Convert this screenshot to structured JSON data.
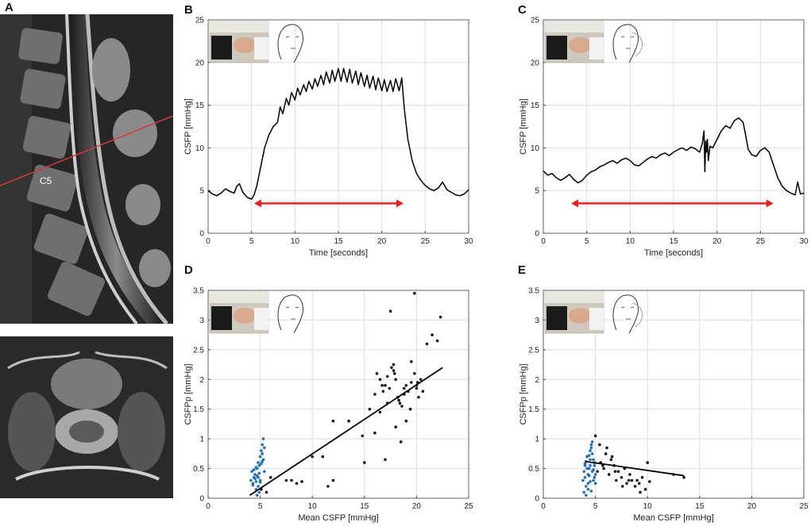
{
  "panels": {
    "A": "A",
    "B": "B",
    "C": "C",
    "D": "D",
    "E": "E",
    "vertebra_label": "C5"
  },
  "colors": {
    "line": "#000000",
    "arrow": "#e8201c",
    "scatter_black": "#111111",
    "scatter_blue": "#1f6fb5",
    "mri_line": "#d43a3a",
    "grid": "#dddddd"
  },
  "chart_data": [
    {
      "id": "B",
      "type": "line",
      "title": "",
      "xlabel": "Time [seconds]",
      "ylabel": "CSFP [mmHg]",
      "xlim": [
        0,
        30
      ],
      "ylim": [
        0,
        25
      ],
      "xticks": [
        0,
        5,
        10,
        15,
        20,
        25,
        30
      ],
      "yticks": [
        0,
        5,
        10,
        15,
        20,
        25
      ],
      "grid": true,
      "series": [
        {
          "name": "CSFP",
          "x": [
            0,
            0.5,
            1,
            1.5,
            2,
            2.5,
            3,
            3.3,
            3.6,
            4,
            4.5,
            5,
            5.3,
            5.6,
            6,
            6.5,
            7,
            7.5,
            8,
            8.3,
            8.6,
            9,
            9.3,
            9.6,
            10,
            10.3,
            10.6,
            11,
            11.3,
            11.6,
            12,
            12.3,
            12.6,
            13,
            13.3,
            13.6,
            14,
            14.3,
            14.6,
            15,
            15.3,
            15.6,
            16,
            16.3,
            16.6,
            17,
            17.3,
            17.6,
            18,
            18.3,
            18.6,
            19,
            19.3,
            19.6,
            20,
            20.3,
            20.6,
            21,
            21.3,
            21.6,
            22,
            22.3,
            22.6,
            23,
            23.5,
            24,
            24.5,
            25,
            25.5,
            26,
            26.5,
            27,
            27.5,
            28,
            28.5,
            29,
            29.5,
            30
          ],
          "y": [
            5,
            4.6,
            4.4,
            4.7,
            5.2,
            4.9,
            4.7,
            5.5,
            5.8,
            4.8,
            4.2,
            4.0,
            4.5,
            5.5,
            7.5,
            10,
            11.5,
            12.5,
            13.0,
            14.8,
            14.0,
            15.8,
            15.0,
            16.5,
            15.6,
            17.0,
            16.2,
            17.4,
            16.6,
            17.8,
            16.9,
            18.1,
            17.2,
            18.5,
            17.4,
            18.9,
            17.6,
            19.1,
            17.8,
            19.3,
            17.8,
            19.3,
            17.7,
            19.2,
            17.6,
            19.0,
            17.4,
            18.8,
            17.2,
            18.5,
            17.0,
            18.4,
            16.8,
            18.2,
            16.7,
            18.0,
            16.6,
            17.9,
            16.6,
            18.1,
            16.7,
            18.2,
            14.5,
            11.0,
            8.5,
            7.0,
            6.2,
            5.6,
            5.2,
            5.0,
            5.3,
            6.0,
            5.1,
            4.8,
            4.5,
            4.4,
            4.6,
            5.1
          ]
        }
      ],
      "arrow": {
        "x1": 5.3,
        "x2": 22.5,
        "y": 3.5
      }
    },
    {
      "id": "C",
      "type": "line",
      "title": "",
      "xlabel": "Time [seconds]",
      "ylabel": "CSFP [mmHg]",
      "xlim": [
        0,
        30
      ],
      "ylim": [
        0,
        25
      ],
      "xticks": [
        0,
        5,
        10,
        15,
        20,
        25,
        30
      ],
      "yticks": [
        0,
        5,
        10,
        15,
        20,
        25
      ],
      "grid": true,
      "series": [
        {
          "name": "CSFP",
          "x": [
            0,
            0.5,
            1,
            1.5,
            2,
            2.5,
            3,
            3.5,
            4,
            4.5,
            5,
            5.5,
            6,
            6.5,
            7,
            7.5,
            8,
            8.5,
            9,
            9.5,
            10,
            10.5,
            11,
            11.5,
            12,
            12.5,
            13,
            13.5,
            14,
            14.5,
            15,
            15.5,
            16,
            16.5,
            17,
            17.5,
            18,
            18.3,
            18.5,
            18.6,
            18.7,
            18.8,
            18.9,
            19,
            19.2,
            19.5,
            20,
            20.5,
            21,
            21.5,
            22,
            22.5,
            23,
            23.3,
            23.6,
            24,
            24.5,
            25,
            25.5,
            26,
            26.5,
            27,
            27.5,
            28,
            28.5,
            29,
            29.3,
            29.6,
            30
          ],
          "y": [
            7.3,
            6.8,
            7.0,
            6.5,
            6.2,
            6.5,
            6.9,
            6.3,
            5.9,
            6.2,
            6.8,
            7.2,
            7.4,
            7.8,
            8.0,
            8.3,
            8.5,
            8.2,
            8.6,
            8.8,
            8.5,
            8.0,
            7.9,
            8.3,
            8.7,
            9.0,
            8.8,
            9.2,
            9.4,
            9.1,
            9.5,
            9.8,
            10.0,
            9.7,
            10.1,
            9.9,
            9.5,
            10.5,
            12.0,
            7.2,
            10.8,
            9.5,
            11.0,
            8.5,
            10.2,
            10.0,
            11.0,
            12.0,
            12.6,
            12.3,
            13.2,
            13.5,
            13.0,
            11.5,
            9.8,
            9.2,
            9.0,
            9.7,
            10.0,
            9.5,
            8.0,
            6.5,
            5.5,
            5.0,
            4.7,
            4.5,
            6.0,
            4.6,
            4.7
          ]
        }
      ],
      "arrow": {
        "x1": 3.2,
        "x2": 26.5,
        "y": 3.5
      }
    },
    {
      "id": "D",
      "type": "scatter",
      "title": "",
      "xlabel": "Mean CSFP [mmHg]",
      "ylabel": "CSFPp [mmHg]",
      "xlim": [
        0,
        25
      ],
      "ylim": [
        0,
        3.5
      ],
      "xticks": [
        0,
        5,
        10,
        15,
        20,
        25
      ],
      "yticks": [
        0,
        0.5,
        1,
        1.5,
        2,
        2.5,
        3,
        3.5
      ],
      "grid": true,
      "series": [
        {
          "name": "blue",
          "x": [
            4.1,
            4.2,
            4.3,
            4.4,
            4.5,
            4.6,
            4.7,
            4.8,
            4.9,
            5.0,
            5.1,
            5.2,
            5.3,
            5.4,
            4.3,
            4.5,
            4.7,
            4.9,
            5.1,
            5.3,
            4.6,
            4.8,
            5.0,
            5.2,
            4.4,
            4.6,
            4.8,
            5.0,
            5.2,
            5.4,
            4.7,
            4.9
          ],
          "y": [
            0.3,
            0.45,
            0.25,
            0.35,
            0.4,
            0.28,
            0.5,
            0.6,
            0.55,
            0.7,
            0.8,
            0.9,
            1.0,
            0.45,
            0.22,
            0.33,
            0.38,
            0.42,
            0.58,
            0.65,
            0.15,
            0.2,
            0.3,
            0.75,
            0.48,
            0.52,
            0.35,
            0.27,
            0.62,
            0.85,
            0.05,
            0.1
          ]
        },
        {
          "name": "black",
          "x": [
            5.1,
            5.6,
            6.0,
            7.5,
            8.0,
            8.5,
            9.0,
            10.0,
            11.0,
            11.5,
            12.0,
            13.5,
            15.0,
            15.5,
            16.0,
            16.2,
            16.5,
            16.8,
            17.0,
            17.2,
            17.4,
            17.6,
            17.8,
            18.0,
            18.2,
            18.4,
            18.6,
            18.8,
            19.0,
            19.2,
            19.5,
            19.8,
            20.0,
            20.2,
            20.4,
            20.6,
            17.0,
            17.5,
            18.0,
            18.5,
            19.0,
            16.5,
            17.8,
            18.3,
            19.5,
            20.0,
            21.0,
            21.5,
            22.0,
            22.3,
            19.8,
            17.2,
            16.0,
            18.8,
            20.1,
            17.9,
            16.7,
            14.8,
            12.0,
            19.4
          ],
          "y": [
            0.15,
            0.1,
            0.35,
            0.3,
            0.3,
            0.25,
            0.28,
            0.7,
            0.7,
            0.2,
            1.3,
            1.3,
            0.6,
            1.5,
            1.75,
            2.1,
            2.0,
            1.8,
            1.9,
            2.05,
            1.85,
            2.2,
            2.15,
            2.0,
            1.7,
            1.6,
            1.55,
            1.75,
            1.9,
            1.8,
            1.95,
            2.1,
            1.85,
            1.7,
            2.0,
            1.8,
            0.65,
            3.15,
            1.2,
            0.95,
            1.3,
            1.45,
            2.25,
            1.65,
            2.3,
            1.9,
            2.6,
            2.75,
            2.65,
            3.05,
            3.45,
            1.6,
            1.1,
            1.85,
            1.95,
            2.1,
            1.9,
            1.05,
            0.3,
            1.5
          ]
        }
      ],
      "fit": {
        "x": [
          4.0,
          22.5
        ],
        "y": [
          0.05,
          2.2
        ]
      }
    },
    {
      "id": "E",
      "type": "scatter",
      "title": "",
      "xlabel": "Mean CSFP [mmHg]",
      "ylabel": "CSFPp [mmHg]",
      "xlim": [
        0,
        25
      ],
      "ylim": [
        0,
        3.5
      ],
      "xticks": [
        0,
        5,
        10,
        15,
        20,
        25
      ],
      "yticks": [
        0,
        0.5,
        1,
        1.5,
        2,
        2.5,
        3,
        3.5
      ],
      "grid": true,
      "series": [
        {
          "name": "blue",
          "x": [
            3.8,
            3.9,
            4.0,
            4.1,
            4.2,
            4.3,
            4.4,
            4.5,
            4.6,
            4.7,
            4.8,
            4.9,
            5.0,
            3.9,
            4.1,
            4.3,
            4.5,
            4.7,
            4.9,
            4.0,
            4.2,
            4.4,
            4.6,
            4.8,
            5.0,
            4.1,
            4.3,
            4.5,
            4.7,
            4.9,
            4.2,
            4.4,
            4.6,
            4.8,
            4.0,
            4.5
          ],
          "y": [
            0.3,
            0.45,
            0.55,
            0.62,
            0.7,
            0.4,
            0.5,
            0.8,
            0.9,
            0.75,
            0.65,
            0.35,
            0.25,
            0.1,
            0.2,
            0.15,
            0.55,
            0.45,
            0.6,
            0.35,
            0.5,
            0.72,
            0.85,
            0.3,
            0.4,
            0.05,
            0.25,
            0.65,
            0.95,
            0.55,
            0.7,
            0.38,
            0.12,
            0.48,
            0.58,
            0.28
          ]
        },
        {
          "name": "black",
          "x": [
            5.0,
            5.2,
            5.5,
            5.8,
            6.0,
            6.3,
            6.5,
            6.8,
            7.0,
            7.2,
            7.5,
            7.8,
            8.0,
            8.3,
            8.5,
            8.8,
            9.0,
            9.2,
            9.5,
            9.8,
            10.0,
            5.4,
            6.1,
            6.9,
            7.6,
            8.2,
            9.3,
            10.2,
            12.5,
            13.5,
            5.7,
            6.6
          ],
          "y": [
            1.05,
            0.45,
            0.6,
            0.5,
            0.75,
            0.4,
            0.65,
            0.55,
            0.3,
            0.45,
            0.35,
            0.5,
            0.25,
            0.4,
            0.3,
            0.2,
            0.3,
            0.25,
            0.35,
            0.15,
            0.6,
            0.9,
            0.85,
            0.45,
            0.2,
            0.3,
            0.1,
            0.28,
            0.4,
            0.35,
            0.55,
            0.7
          ]
        }
      ],
      "fit": {
        "x": [
          4.0,
          13.5
        ],
        "y": [
          0.62,
          0.38
        ]
      }
    }
  ]
}
